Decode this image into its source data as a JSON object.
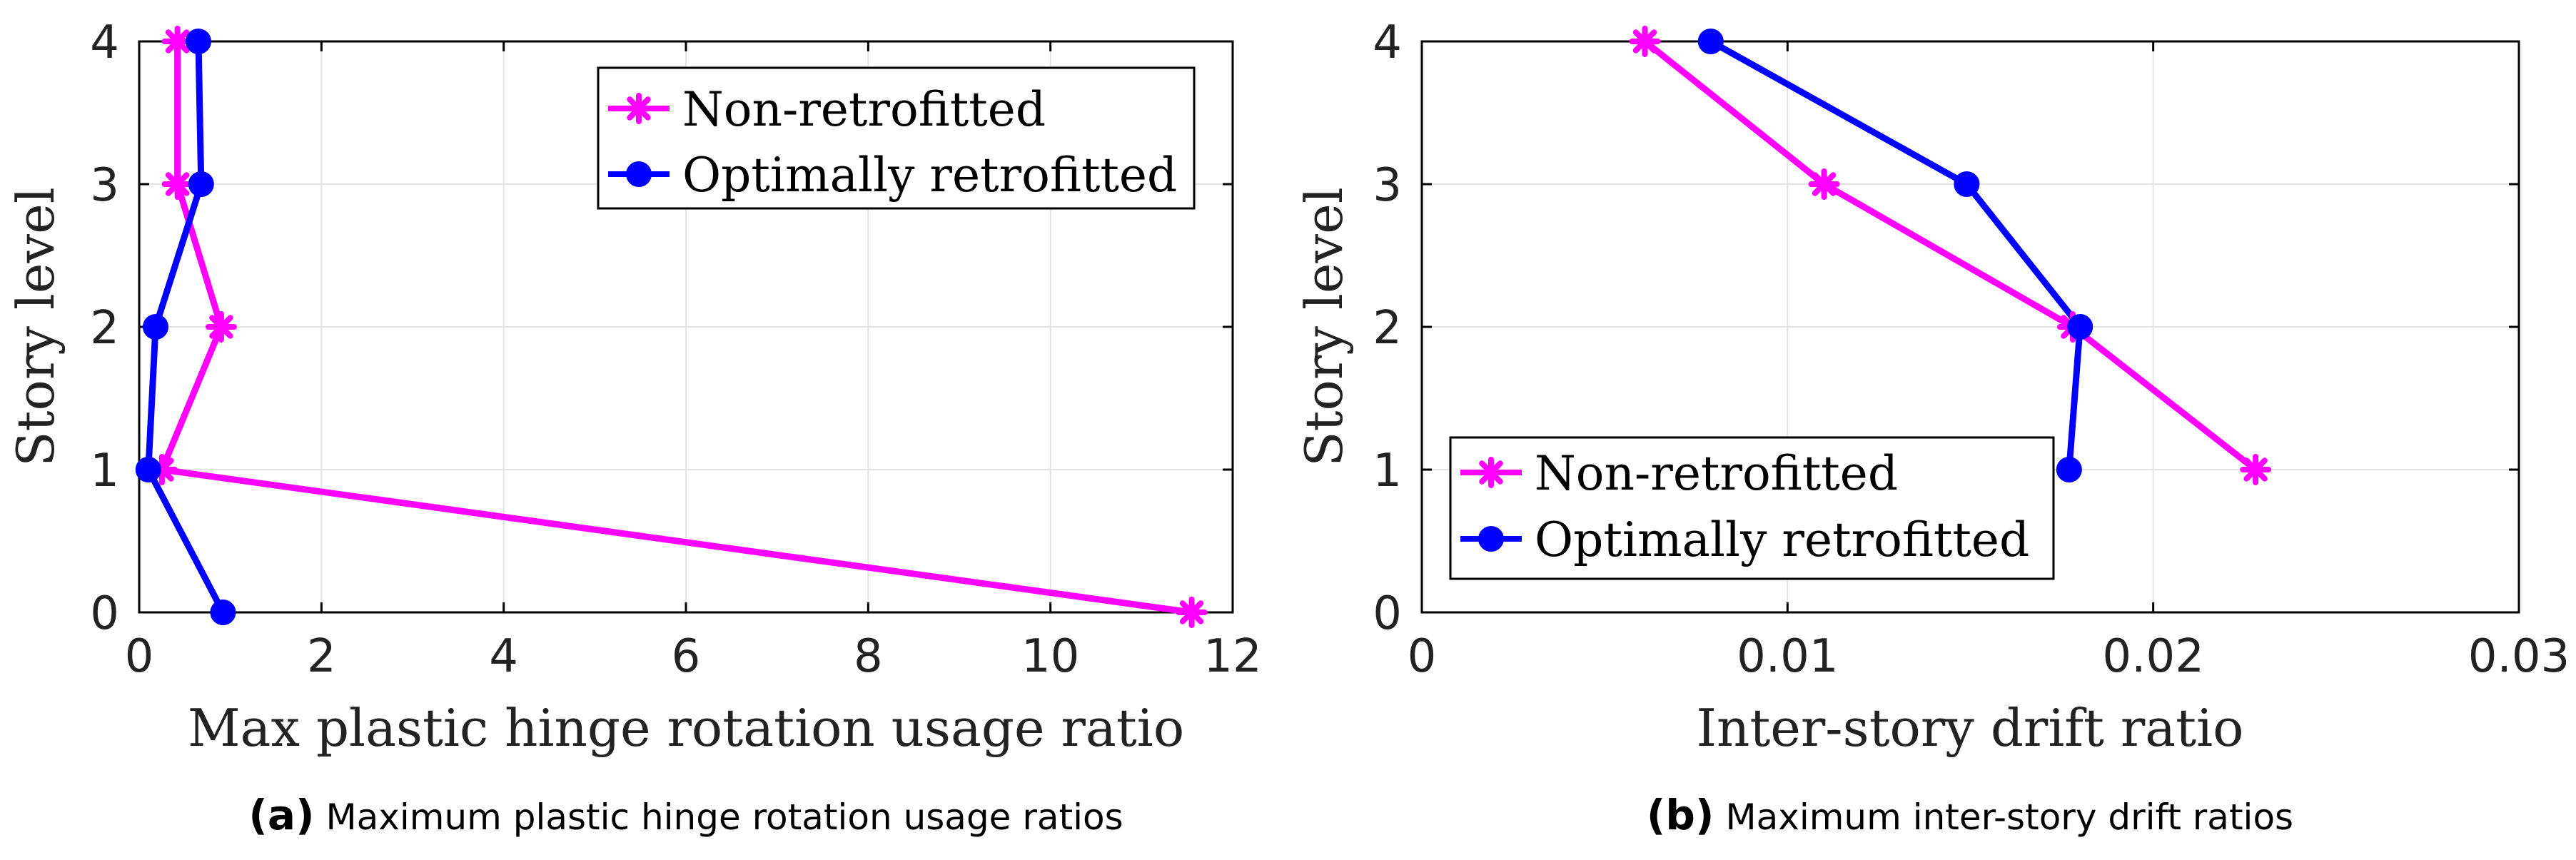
{
  "chart_data": [
    {
      "type": "line",
      "panel": "a",
      "caption_prefix": "(a)",
      "caption": "Maximum plastic hinge rotation usage ratios",
      "xlabel": "Max plastic hinge rotation usage ratio",
      "ylabel": "Story level",
      "xlim": [
        0,
        12
      ],
      "ylim": [
        0,
        4
      ],
      "xticks": [
        0,
        2,
        4,
        6,
        8,
        10,
        12
      ],
      "xtick_labels": [
        "0",
        "2",
        "4",
        "6",
        "8",
        "10",
        "12"
      ],
      "yticks": [
        0,
        1,
        2,
        3,
        4
      ],
      "ytick_labels": [
        "0",
        "1",
        "2",
        "3",
        "4"
      ],
      "grid": true,
      "legend_position": "top-right",
      "series": [
        {
          "name": "Non-retrofitted",
          "color": "#ff00ff",
          "marker": "asterisk",
          "points": [
            [
              11.55,
              0
            ],
            [
              0.25,
              1
            ],
            [
              0.9,
              2
            ],
            [
              0.42,
              3
            ],
            [
              0.42,
              4
            ]
          ]
        },
        {
          "name": "Optimally retrofitted",
          "color": "#0000ff",
          "marker": "circle",
          "points": [
            [
              0.92,
              0
            ],
            [
              0.1,
              1
            ],
            [
              0.18,
              2
            ],
            [
              0.68,
              3
            ],
            [
              0.65,
              4
            ]
          ]
        }
      ]
    },
    {
      "type": "line",
      "panel": "b",
      "caption_prefix": "(b)",
      "caption": "Maximum inter-story drift ratios",
      "xlabel": "Inter-story drift ratio",
      "ylabel": "Story level",
      "xlim": [
        0,
        0.03
      ],
      "ylim": [
        0,
        4
      ],
      "xticks": [
        0,
        0.01,
        0.02,
        0.03
      ],
      "xtick_labels": [
        "0",
        "0.01",
        "0.02",
        "0.03"
      ],
      "yticks": [
        0,
        1,
        2,
        3,
        4
      ],
      "ytick_labels": [
        "0",
        "1",
        "2",
        "3",
        "4"
      ],
      "grid": true,
      "legend_position": "bottom-left",
      "series": [
        {
          "name": "Non-retrofitted",
          "color": "#ff00ff",
          "marker": "asterisk",
          "points": [
            [
              0.0228,
              1
            ],
            [
              0.0178,
              2
            ],
            [
              0.011,
              3
            ],
            [
              0.0061,
              4
            ]
          ]
        },
        {
          "name": "Optimally retrofitted",
          "color": "#0000ff",
          "marker": "circle",
          "points": [
            [
              0.0177,
              1
            ],
            [
              0.018,
              2
            ],
            [
              0.0149,
              3
            ],
            [
              0.0079,
              4
            ]
          ]
        }
      ]
    }
  ]
}
